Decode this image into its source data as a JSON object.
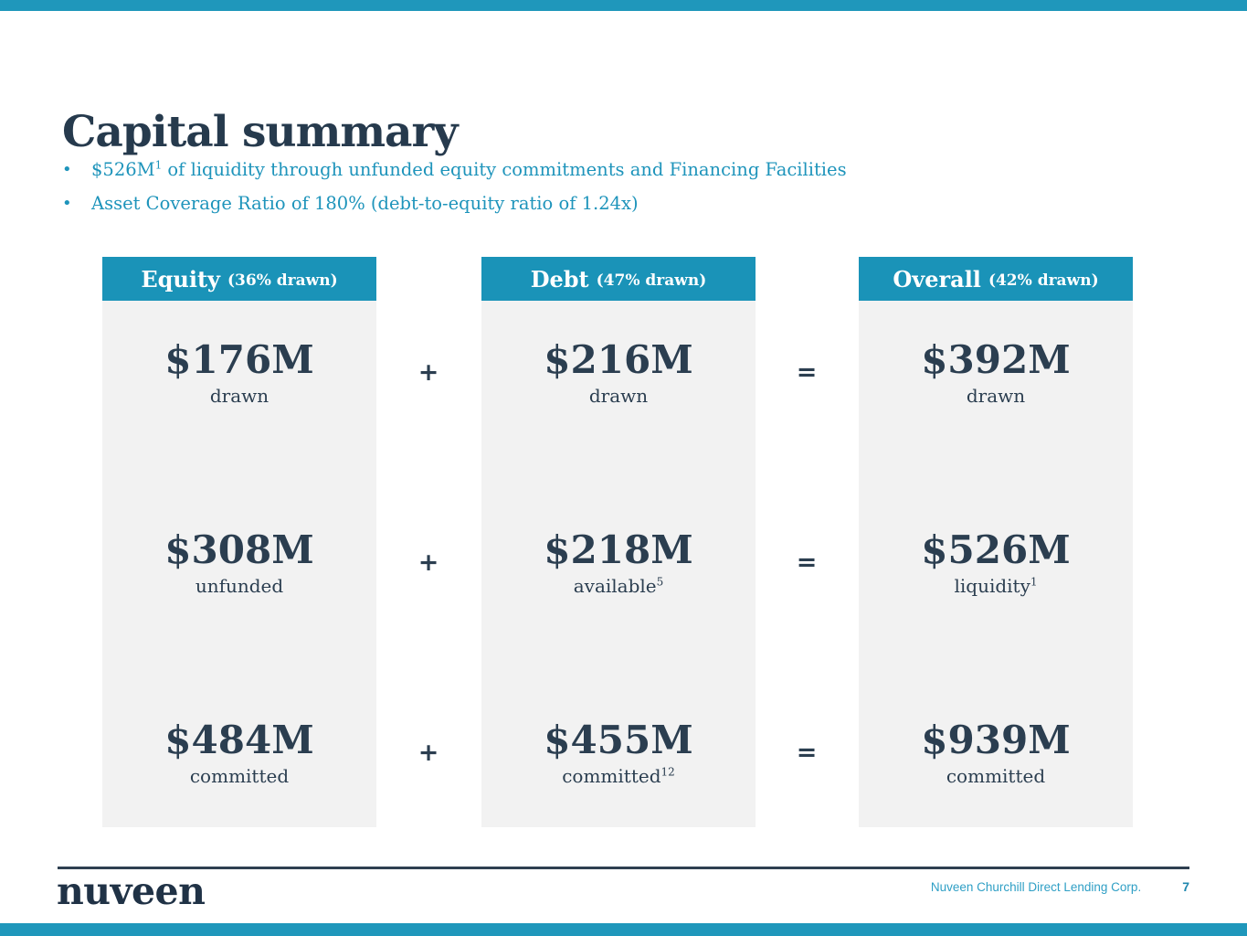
{
  "page": {
    "title": "Capital summary"
  },
  "colors": {
    "accent_teal": "#1a93b8",
    "bar_teal": "#1f97bb",
    "navy_text": "#2b3e50",
    "bullet_teal": "#1e94bb",
    "body_gray": "#f2f2f2",
    "footer_link_teal": "#2f9fc5"
  },
  "bullets": [
    {
      "pre": "$526M",
      "sup": "1",
      "post": " of liquidity through unfunded equity commitments and Financing Facilities"
    },
    {
      "text": "Asset Coverage Ratio of 180% (debt-to-equity ratio of 1.24x)"
    }
  ],
  "columns": [
    {
      "header": {
        "label": "Equity",
        "sub": "(36% drawn)"
      },
      "rows": [
        {
          "value": "$176M",
          "label": "drawn",
          "sup": ""
        },
        {
          "value": "$308M",
          "label": "unfunded",
          "sup": ""
        },
        {
          "value": "$484M",
          "label": "committed",
          "sup": ""
        }
      ]
    },
    {
      "header": {
        "label": "Debt",
        "sub": "(47% drawn)"
      },
      "rows": [
        {
          "value": "$216M",
          "label": "drawn",
          "sup": ""
        },
        {
          "value": "$218M",
          "label": "available",
          "sup": "5"
        },
        {
          "value": "$455M",
          "label": "committed",
          "sup": "12"
        }
      ]
    },
    {
      "header": {
        "label": "Overall",
        "sub": "(42% drawn)"
      },
      "rows": [
        {
          "value": "$392M",
          "label": "drawn",
          "sup": ""
        },
        {
          "value": "$526M",
          "label": "liquidity",
          "sup": "1"
        },
        {
          "value": "$939M",
          "label": "committed",
          "sup": ""
        }
      ]
    }
  ],
  "operators": {
    "plus": "+",
    "equals": "="
  },
  "footer": {
    "brand": "nuveen",
    "company": "Nuveen Churchill Direct Lending Corp.",
    "page_number": "7"
  }
}
